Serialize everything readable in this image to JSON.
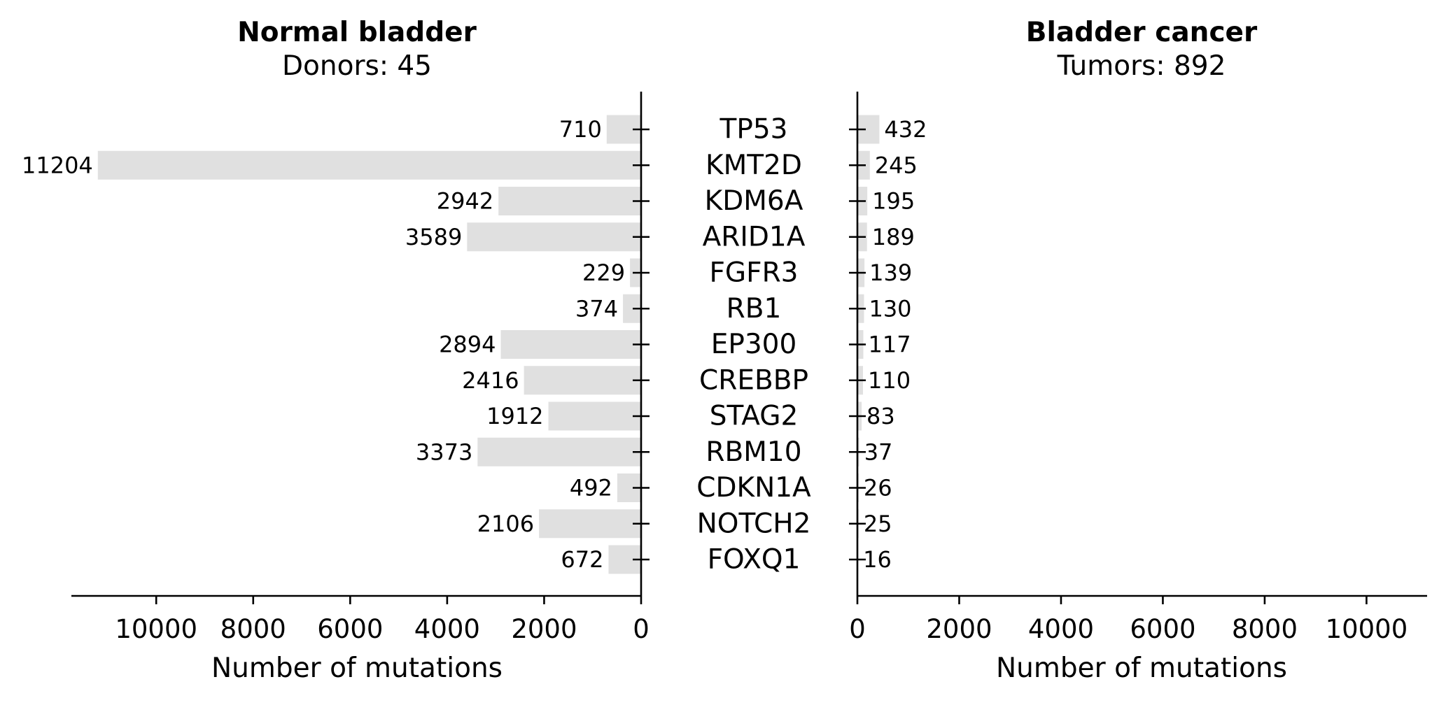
{
  "chart_data": {
    "type": "bar",
    "orientation": "horizontal",
    "categories": [
      "TP53",
      "KMT2D",
      "KDM6A",
      "ARID1A",
      "FGFR3",
      "RB1",
      "EP300",
      "CREBBP",
      "STAG2",
      "RBM10",
      "CDKN1A",
      "NOTCH2",
      "FOXQ1"
    ],
    "bar_color": "#e0e0e0",
    "panels": [
      {
        "title": "Normal bladder",
        "subtitle": "Donors: 45",
        "xlabel": "Number of mutations",
        "direction": "inverted",
        "xlim": [
          0,
          11764
        ],
        "ticks": [
          10000,
          8000,
          6000,
          4000,
          2000,
          0
        ],
        "values": [
          710,
          11204,
          2942,
          3589,
          229,
          374,
          2894,
          2416,
          1912,
          3373,
          492,
          2106,
          672
        ]
      },
      {
        "title": "Bladder cancer",
        "subtitle": "Tumors: 892",
        "xlabel": "Number of mutations",
        "direction": "normal",
        "xlim": [
          0,
          11204
        ],
        "ticks": [
          0,
          2000,
          4000,
          6000,
          8000,
          10000
        ],
        "values": [
          432,
          245,
          195,
          189,
          139,
          130,
          117,
          110,
          83,
          37,
          26,
          25,
          16
        ]
      }
    ]
  }
}
